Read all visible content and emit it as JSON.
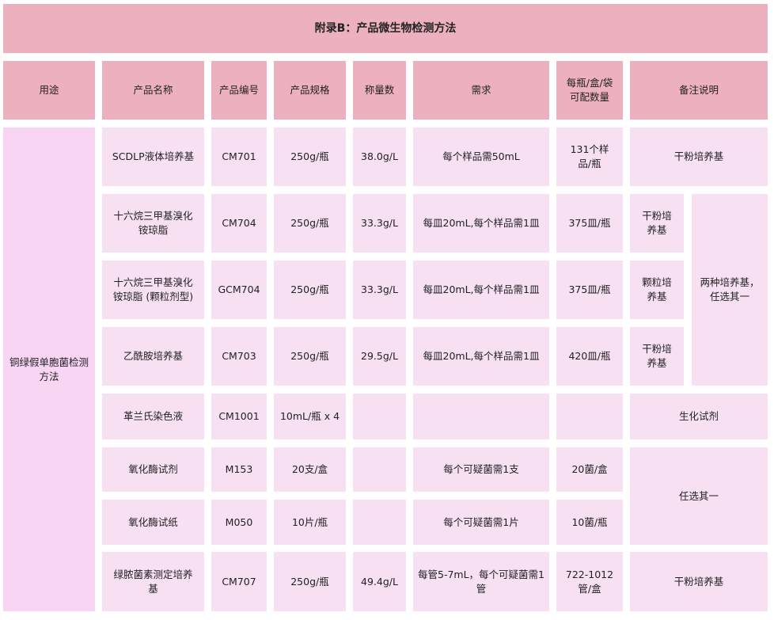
{
  "title": "附录B：产品微生物检测方法",
  "headers": [
    "用途",
    "产品名称",
    "产品编号",
    "产品规格",
    "称量数",
    "需求",
    "每瓶/盒/袋可配数量",
    "备注说明"
  ],
  "use": "铜绿假单胞菌检测方法",
  "rows": [
    {
      "name": "SCDLP液体培养基",
      "code": "CM701",
      "spec": "250g/瓶",
      "weight": "38.0g/L",
      "need": "每个样品需50mL",
      "qty": "131个样品/瓶",
      "note": "干粉培养基"
    },
    {
      "name": "十六烷三甲基溴化铵琼脂",
      "code": "CM704",
      "spec": "250g/瓶",
      "weight": "33.3g/L",
      "need": "每皿20mL,每个样品需1皿",
      "qty": "375皿/瓶",
      "note": "干粉培养基"
    },
    {
      "name": "十六烷三甲基溴化铵琼脂 (颗粒剂型)",
      "code": "GCM704",
      "spec": "250g/瓶",
      "weight": "33.3g/L",
      "need": "每皿20mL,每个样品需1皿",
      "qty": "375皿/瓶",
      "note": "颗粒培养基"
    },
    {
      "name": "乙酰胺培养基",
      "code": "CM703",
      "spec": "250g/瓶",
      "weight": "29.5g/L",
      "need": "每皿20mL,每个样品需1皿",
      "qty": "420皿/瓶",
      "note": "干粉培养基"
    },
    {
      "name": "革兰氏染色液",
      "code": "CM1001",
      "spec": "10mL/瓶 x 4",
      "weight": "",
      "need": "",
      "qty": "",
      "note": "生化试剂"
    },
    {
      "name": "氧化酶试剂",
      "code": "M153",
      "spec": "20支/盒",
      "weight": "",
      "need": "每个可疑菌需1支",
      "qty": "20菌/盒",
      "note": "任选其一"
    },
    {
      "name": "氧化酶试纸",
      "code": "M050",
      "spec": "10片/瓶",
      "weight": "",
      "need": "每个可疑菌需1片",
      "qty": "10菌/瓶",
      "note": ""
    },
    {
      "name": "绿脓菌素测定培养基",
      "code": "CM707",
      "spec": "250g/瓶",
      "weight": "49.4g/L",
      "need": "每管5-7mL，每个可疑菌需1管",
      "qty": "722-1012管/盒",
      "note": "干粉培养基"
    }
  ],
  "merged_note": "两种培养基，任选其一",
  "colors": {
    "header": "#ecb0bf",
    "cell": "#f6e0f2",
    "use_cell": "#f9d5f4"
  }
}
